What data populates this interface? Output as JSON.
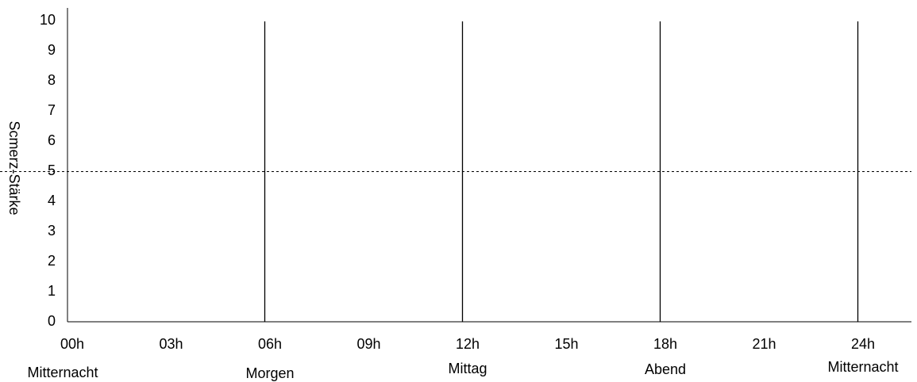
{
  "chart_data": {
    "type": "line",
    "title": "",
    "ylabel": "Scmerz-Stärke",
    "xlabel": "",
    "ylim": [
      0,
      10
    ],
    "yticks": [
      "0",
      "1",
      "2",
      "3",
      "4",
      "5",
      "6",
      "7",
      "8",
      "9",
      "10"
    ],
    "x_ticks": [
      {
        "hour": 0,
        "label": "00h"
      },
      {
        "hour": 3,
        "label": "03h"
      },
      {
        "hour": 6,
        "label": "06h"
      },
      {
        "hour": 9,
        "label": "09h"
      },
      {
        "hour": 12,
        "label": "12h"
      },
      {
        "hour": 15,
        "label": "15h"
      },
      {
        "hour": 18,
        "label": "18h"
      },
      {
        "hour": 21,
        "label": "21h"
      },
      {
        "hour": 24,
        "label": "24h"
      }
    ],
    "time_of_day_labels": [
      {
        "hour": 0,
        "label": "Mitternacht"
      },
      {
        "hour": 6,
        "label": "Morgen"
      },
      {
        "hour": 12,
        "label": "Mittag"
      },
      {
        "hour": 18,
        "label": "Abend"
      },
      {
        "hour": 24,
        "label": "Mitternacht"
      }
    ],
    "vertical_markers": [
      6,
      12,
      18,
      24
    ],
    "reference_line": {
      "y": 5,
      "style": "dashed"
    },
    "series": [],
    "grid": false
  }
}
